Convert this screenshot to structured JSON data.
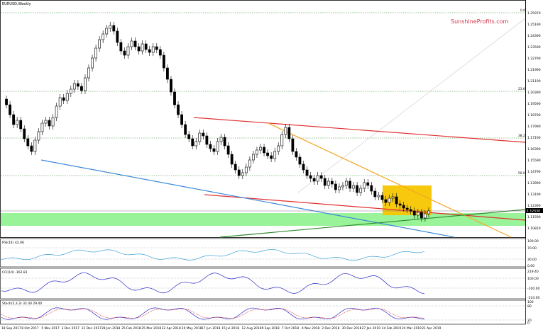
{
  "chart": {
    "title": "EURUSD,Weekly",
    "watermark": "SunshineProfits.com",
    "current_price": "1.12530",
    "price_ticks": [
      "1.25970",
      "1.25190",
      "1.24390",
      "1.23590",
      "1.22790",
      "1.21990",
      "1.21190",
      "1.20390",
      "1.19590",
      "1.18790",
      "1.17990",
      "1.17190",
      "1.16390",
      "1.15590",
      "1.14790",
      "1.13990",
      "1.13190",
      "1.12390",
      "1.11590",
      "1.10810"
    ],
    "fib_levels": [
      "0.0",
      "23.6",
      "38.2",
      "50.0"
    ],
    "dates": [
      "18 Sep 2017",
      "8 Oct 2017",
      "5 Nov 2017",
      "3 Dec 2017",
      "31 Dec 2017",
      "28 Jan 2018",
      "25 Feb 2018",
      "25 Mar 2018",
      "22 Apr 2018",
      "20 May 2018",
      "17 Jun 2018",
      "15 Jul 2018",
      "12 Aug 2018",
      "9 Sep 2018",
      "7 Oct 2018",
      "4 Nov 2018",
      "2 Dec 2018",
      "30 Dec 2018",
      "27 Jan 2019",
      "24 Feb 2019",
      "24 Mar 2019",
      "21 Apr 2019"
    ]
  },
  "rsi": {
    "label": "RSI(14) 42.06",
    "ticks": [
      "100.00",
      "70.00",
      "30.00",
      "0.00"
    ]
  },
  "cci": {
    "label": "CCI(14) -162.81",
    "ticks": [
      "219.40",
      "100.00",
      "-100.00",
      "-224.00"
    ]
  },
  "stoch": {
    "label": "Stoch(5,3,3) 32.40 29.00",
    "ticks": [
      "100",
      "80",
      "20",
      "0"
    ]
  },
  "colors": {
    "support_zone": "#8ef28e",
    "resistance_zone": "#f7c600",
    "red_channel": "#e03030",
    "orange_line": "#f5a623",
    "blue_line": "#3a8ad8",
    "green_line": "#2e8b2e"
  }
}
